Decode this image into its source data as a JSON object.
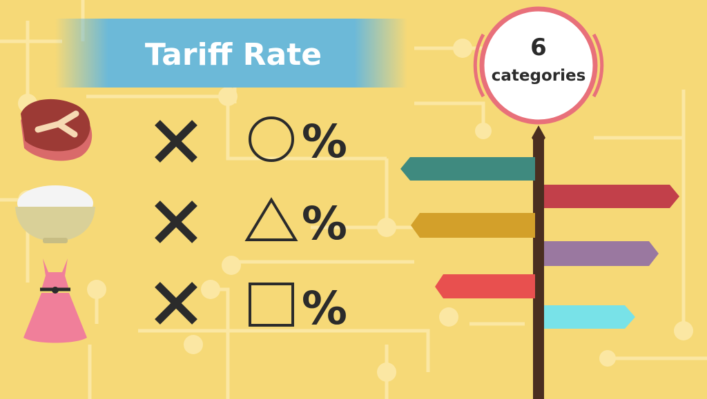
{
  "header": {
    "title": "Tariff Rate"
  },
  "badge": {
    "number": "6",
    "label": "categories"
  },
  "rows": [
    {
      "symbol": "%"
    },
    {
      "symbol": "%"
    },
    {
      "symbol": "%"
    }
  ]
}
